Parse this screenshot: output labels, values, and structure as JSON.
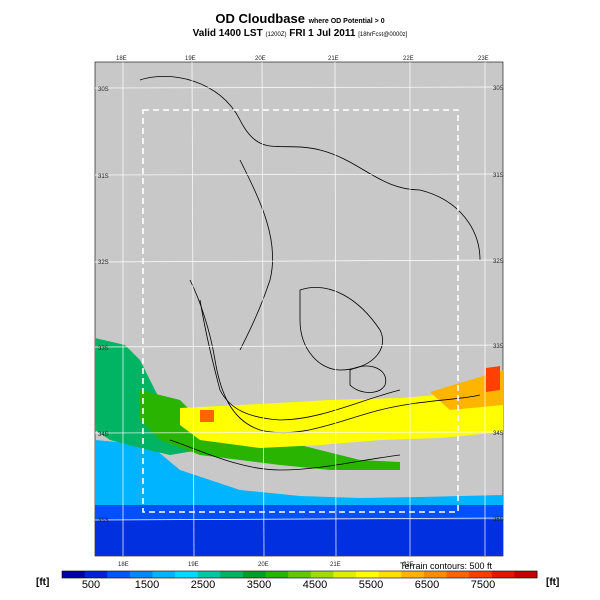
{
  "title": {
    "main": "OD Cloudbase",
    "suffix": "where OD Potential > 0"
  },
  "subtitle": {
    "valid": "Valid 1400 LST",
    "utc": "(1200Z)",
    "date": "FRI 1 Jul 2011",
    "init": "[18hrFcst@0000z]"
  },
  "map": {
    "lon_labels_top": [
      "18E",
      "19E",
      "20E",
      "21E",
      "22E",
      "23E"
    ],
    "lon_labels_bottom": [
      "18E",
      "19E",
      "20E",
      "21E",
      "22E"
    ],
    "lat_labels_left": [
      "30S",
      "31S",
      "32S",
      "33S",
      "34S",
      "35S"
    ],
    "lat_labels_right": [
      "30S",
      "31S",
      "32S",
      "33S",
      "34S",
      "35S"
    ],
    "background_color": "#c8c8c8",
    "grid_color": "#ffffff",
    "terrain_contours_note": "Terrain contours: 500 ft"
  },
  "colorbar": {
    "unit_left": "[ft]",
    "unit_right": "[ft]",
    "labels": [
      "500",
      "1500",
      "2500",
      "3500",
      "4500",
      "5500",
      "6500",
      "7500"
    ],
    "colors": [
      "#0000aa",
      "#0022dd",
      "#0055ff",
      "#0088ff",
      "#00b4ff",
      "#00dcff",
      "#00c8a0",
      "#00b464",
      "#00a028",
      "#28b400",
      "#64c800",
      "#a0dc00",
      "#dcf000",
      "#ffff00",
      "#ffe000",
      "#ffb400",
      "#ff8c00",
      "#ff6400",
      "#ff3c00",
      "#e61400",
      "#c80000"
    ]
  }
}
